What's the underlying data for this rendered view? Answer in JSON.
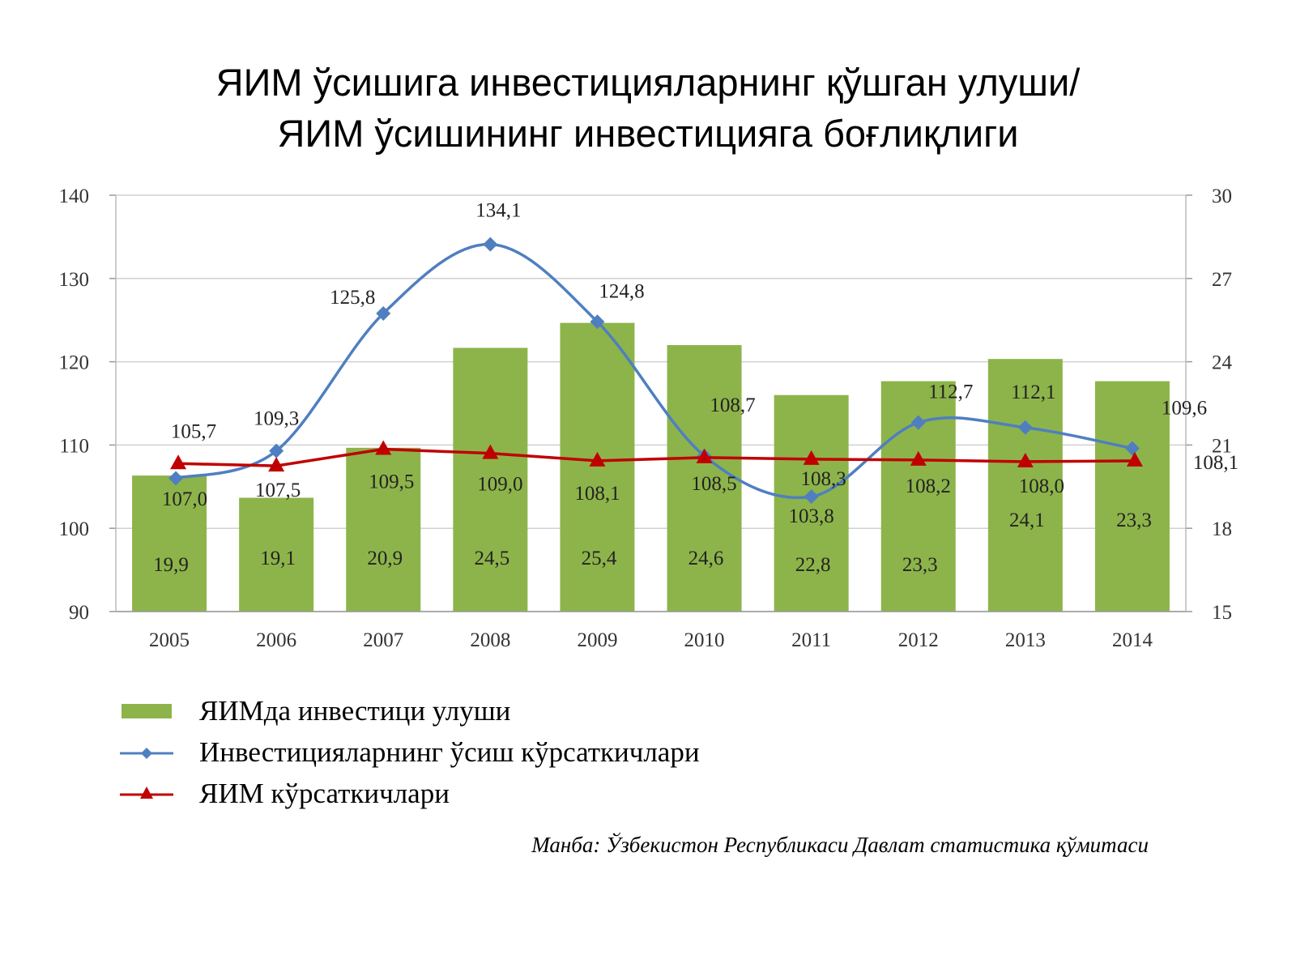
{
  "title_line1": "ЯИМ ўсишига инвестицияларнинг қўшган улуши/",
  "title_line2": "ЯИМ ўсишининг инвестицияга боғлиқлиги",
  "source": "Манба: Ўзбекистон Республикаси Давлат статистика қўмитаси",
  "colors": {
    "bar": "#8db44a",
    "invest": "#4f7fc0",
    "gdp": "#c00000",
    "grid": "#d0d0d0"
  },
  "chart_data": {
    "type": "bar",
    "categories": [
      "2005",
      "2006",
      "2007",
      "2008",
      "2009",
      "2010",
      "2011",
      "2012",
      "2013",
      "2014"
    ],
    "y_left": {
      "range": [
        90,
        140
      ],
      "ticks": [
        "90",
        "100",
        "110",
        "120",
        "130",
        "140"
      ]
    },
    "y_right": {
      "range": [
        15,
        30
      ],
      "ticks": [
        "15",
        "18",
        "21",
        "24",
        "27",
        "30"
      ]
    },
    "grid": true,
    "legend_position": "bottom-left",
    "series": [
      {
        "name": "ЯИМда инвестици улуши",
        "type": "bar",
        "axis": "right",
        "values": [
          19.9,
          19.1,
          20.9,
          24.5,
          25.4,
          24.6,
          22.8,
          23.3,
          24.1,
          23.3
        ],
        "labels": [
          "19,9",
          "19,1",
          "20,9",
          "24,5",
          "25,4",
          "24,6",
          "22,8",
          "23,3",
          "24,1",
          "23,3"
        ]
      },
      {
        "name": "Инвестицияларнинг ўсиш кўрсаткичлари",
        "type": "line",
        "axis": "left",
        "values": [
          105.7,
          109.3,
          125.8,
          134.1,
          124.8,
          108.7,
          103.8,
          112.7,
          112.1,
          109.6
        ],
        "labels": [
          "105,7",
          "109,3",
          "125,8",
          "134,1",
          "124,8",
          "108,7",
          "103,8",
          "112,7",
          "112,1",
          "109,6"
        ]
      },
      {
        "name": "ЯИМ кўрсаткичлари",
        "type": "line",
        "axis": "left",
        "values": [
          107.0,
          107.5,
          109.5,
          109.0,
          108.1,
          108.5,
          108.3,
          108.2,
          108.0,
          108.1
        ],
        "labels": [
          "107,0",
          "107,5",
          "109,5",
          "109,0",
          "108,1",
          "108,5",
          "108,3",
          "108,2",
          "108,0",
          "108,1"
        ]
      }
    ]
  }
}
